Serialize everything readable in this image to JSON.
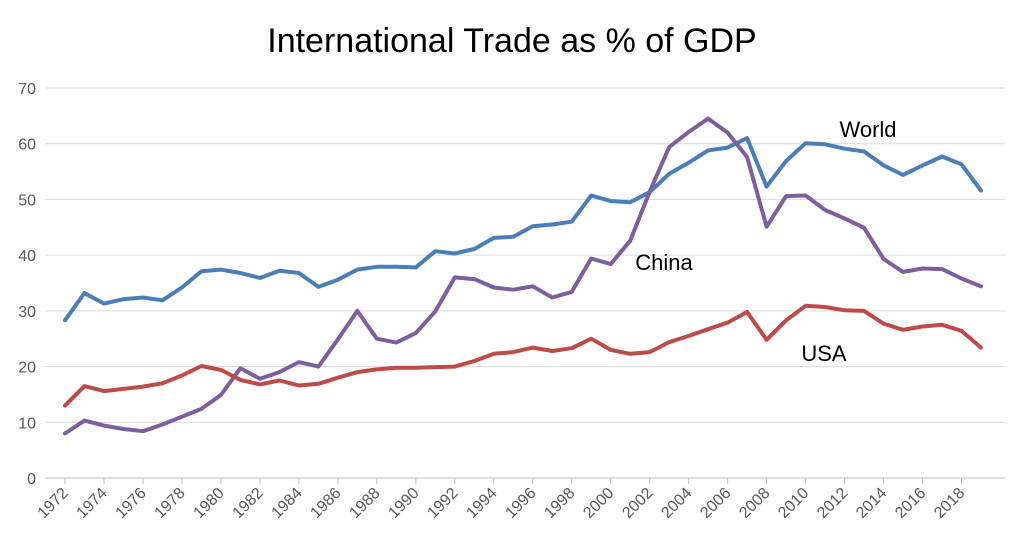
{
  "chart_data": {
    "type": "line",
    "title": "International Trade as % of GDP",
    "xlabel": "",
    "ylabel": "",
    "ylim": [
      0,
      70
    ],
    "yticks": [
      0,
      10,
      20,
      30,
      40,
      50,
      60,
      70
    ],
    "xlim": [
      1972,
      2019
    ],
    "xticks": [
      1972,
      1974,
      1976,
      1978,
      1980,
      1982,
      1984,
      1986,
      1988,
      1990,
      1992,
      1994,
      1996,
      1998,
      2000,
      2002,
      2004,
      2006,
      2008,
      2010,
      2012,
      2014,
      2016,
      2018
    ],
    "grid": true,
    "legend": "none (series labeled directly on chart)",
    "x": [
      1972,
      1973,
      1974,
      1975,
      1976,
      1977,
      1978,
      1979,
      1980,
      1981,
      1982,
      1983,
      1984,
      1985,
      1986,
      1987,
      1988,
      1989,
      1990,
      1991,
      1992,
      1993,
      1994,
      1995,
      1996,
      1997,
      1998,
      1999,
      2000,
      2001,
      2002,
      2003,
      2004,
      2005,
      2006,
      2007,
      2008,
      2009,
      2010,
      2011,
      2012,
      2013,
      2014,
      2015,
      2016,
      2017,
      2018,
      2019
    ],
    "series": [
      {
        "name": "World",
        "color": "#4A7EBB",
        "values": [
          28.3,
          33.2,
          31.3,
          32.1,
          32.4,
          31.9,
          34.2,
          37.1,
          37.4,
          36.8,
          35.9,
          37.2,
          36.8,
          34.3,
          35.6,
          37.4,
          37.9,
          37.9,
          37.8,
          40.7,
          40.3,
          41.1,
          43.1,
          43.3,
          45.2,
          45.5,
          46.0,
          50.7,
          49.7,
          49.5,
          51.3,
          54.6,
          56.6,
          58.8,
          59.3,
          61.0,
          52.3,
          56.9,
          60.1,
          59.9,
          59.1,
          58.6,
          56.1,
          54.4,
          56.1,
          57.7,
          56.3,
          51.6
        ]
      },
      {
        "name": "China",
        "color": "#7D5FA0",
        "values": [
          8.0,
          10.3,
          9.4,
          8.8,
          8.4,
          9.6,
          11.0,
          12.4,
          14.9,
          19.7,
          17.8,
          19.0,
          20.8,
          20.0,
          24.9,
          30.0,
          25.0,
          24.3,
          26.0,
          29.9,
          36.0,
          35.7,
          34.2,
          33.8,
          34.4,
          32.4,
          33.4,
          39.4,
          38.4,
          42.6,
          51.4,
          59.4,
          62.1,
          64.5,
          62.0,
          57.6,
          45.1,
          50.6,
          50.7,
          48.1,
          46.6,
          44.9,
          39.3,
          37.0,
          37.6,
          37.5,
          35.8,
          34.4
        ]
      },
      {
        "name": "USA",
        "color": "#BE4B48",
        "values": [
          13.0,
          16.5,
          15.6,
          16.0,
          16.4,
          17.0,
          18.4,
          20.1,
          19.4,
          17.6,
          16.8,
          17.5,
          16.6,
          16.9,
          18.0,
          19.0,
          19.5,
          19.8,
          19.8,
          19.9,
          20.0,
          21.0,
          22.3,
          22.6,
          23.4,
          22.8,
          23.3,
          25.0,
          23.0,
          22.3,
          22.6,
          24.4,
          25.5,
          26.7,
          27.9,
          29.8,
          24.8,
          28.3,
          30.9,
          30.7,
          30.1,
          30.0,
          27.7,
          26.6,
          27.2,
          27.5,
          26.4,
          23.4
        ]
      }
    ],
    "annotations": [
      {
        "text": "World",
        "near_series": "World"
      },
      {
        "text": "China",
        "near_series": "China"
      },
      {
        "text": "USA",
        "near_series": "USA"
      }
    ]
  }
}
